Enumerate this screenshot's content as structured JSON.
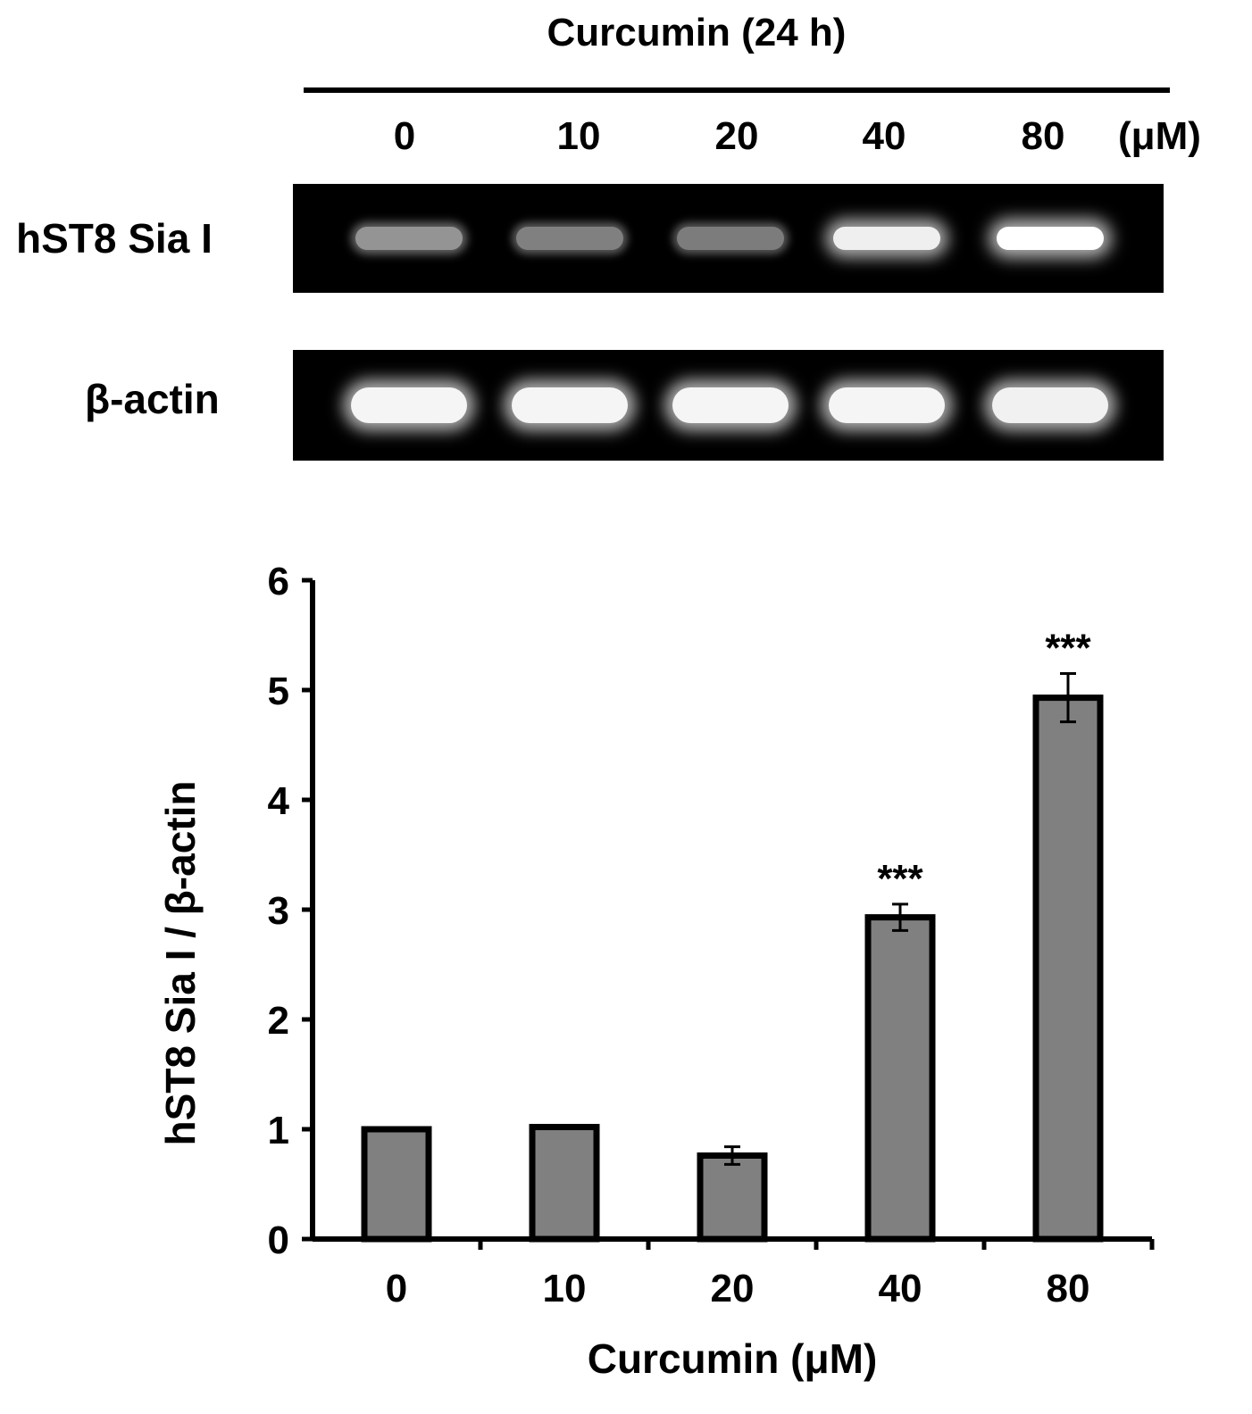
{
  "figure": {
    "treatment_title": "Curcumin  (24 h)",
    "dose_labels": [
      "0",
      "10",
      "20",
      "40",
      "80"
    ],
    "dose_unit": "(μM)",
    "gel_rows": [
      {
        "label": "hST8 Sia I",
        "band_intensity": [
          0.45,
          0.35,
          0.33,
          0.92,
          1.0
        ]
      },
      {
        "label": "β-actin",
        "band_intensity": [
          0.95,
          0.95,
          0.95,
          0.95,
          0.93
        ]
      }
    ]
  },
  "chart_data": {
    "type": "bar",
    "categories": [
      "0",
      "10",
      "20",
      "40",
      "80"
    ],
    "values": [
      1.0,
      1.02,
      0.76,
      2.93,
      4.93
    ],
    "errors": [
      0,
      0,
      0.08,
      0.12,
      0.22
    ],
    "annotations": [
      "",
      "",
      "",
      "***",
      "***"
    ],
    "xlabel": "Curcumin (μM)",
    "ylabel": "hST8 Sia I / β-actin",
    "ylim": [
      0,
      6
    ],
    "yticks": [
      "0",
      "1",
      "2",
      "3",
      "4",
      "5",
      "6"
    ],
    "bar_color": "#808080",
    "edge_color": "#000000",
    "grid": false
  }
}
